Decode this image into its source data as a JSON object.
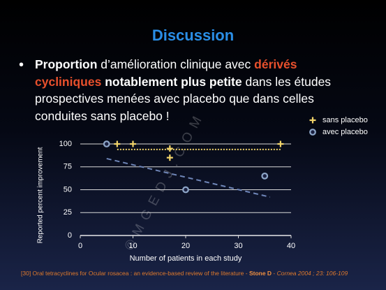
{
  "title": "Discussion",
  "bullet": {
    "runs": [
      {
        "text": "Proportion",
        "style": "bold"
      },
      {
        "text": " d’amélioration clinique avec ",
        "style": "normal"
      },
      {
        "text": "dérivés cycliniques",
        "style": "bold-accent"
      },
      {
        "text": " ",
        "style": "normal"
      },
      {
        "text": "notablement plus petite",
        "style": "bold"
      },
      {
        "text": " dans les études prospectives menées avec placebo que dans celles conduites sans placebo !",
        "style": "normal"
      }
    ]
  },
  "watermark": "© M G E D J . C O M",
  "footer": {
    "runs": [
      {
        "text": "[30] Oral tetracyclines for Ocular rosacea : an evidence-based review of the literature - ",
        "style": "normal"
      },
      {
        "text": "Stone D",
        "style": "bold"
      },
      {
        "text": " - ",
        "style": "normal"
      },
      {
        "text": "Cornea 2004 ; 23: 106-109",
        "style": "italic"
      }
    ]
  },
  "chart_data": {
    "type": "scatter",
    "xlabel": "Number of patients in each study",
    "ylabel": "Reported percent improvement",
    "xlim": [
      0,
      40
    ],
    "xticks": [
      0,
      10,
      20,
      30,
      40
    ],
    "ylim": [
      0,
      100
    ],
    "yticks": [
      0,
      25,
      50,
      75,
      100
    ],
    "grid": true,
    "legend": "top-right",
    "series": [
      {
        "name": "sans placebo",
        "color": "#f2d46a",
        "marker": "plus",
        "x": [
          7,
          10,
          17,
          17,
          38
        ],
        "values": [
          100,
          100,
          95,
          85,
          100
        ]
      },
      {
        "name": "avec placebo",
        "color": "#8ea6c8",
        "marker": "circle",
        "x": [
          5,
          20,
          35
        ],
        "values": [
          100,
          50,
          65
        ]
      }
    ],
    "trendlines": [
      {
        "color": "#f2d46a",
        "style": "dotted",
        "x": [
          7,
          38
        ],
        "y": [
          94,
          94
        ]
      },
      {
        "color": "#6f86b8",
        "style": "dashed",
        "x": [
          5,
          36
        ],
        "y": [
          84,
          42
        ]
      }
    ]
  }
}
